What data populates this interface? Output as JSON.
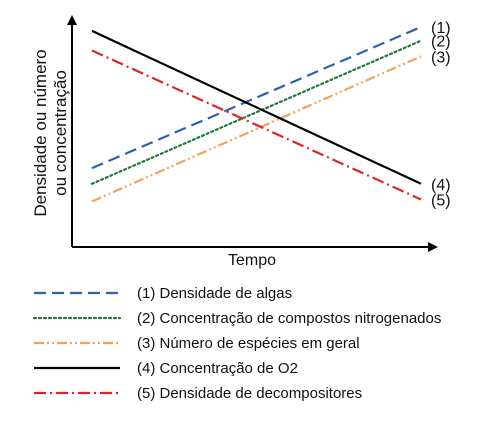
{
  "chart_data": {
    "type": "line",
    "title": "",
    "xlabel": "Tempo",
    "ylabel_lines": [
      "Densidade ou número",
      "ou concentração"
    ],
    "xticks": [],
    "yticks": [],
    "grid": false,
    "legend_position": "bottom",
    "xlim": [
      0,
      1
    ],
    "ylim": [
      0,
      1
    ],
    "series": [
      {
        "id": "s1",
        "end_label": "(1)",
        "name": "(1) Densidade de algas",
        "color": "#2f5fb3",
        "style": "dashed",
        "x": [
          0,
          1
        ],
        "y": [
          0.28,
          1.0
        ]
      },
      {
        "id": "s2",
        "end_label": "(2)",
        "name": "(2) Concentração de compostos nitrogenados",
        "color": "#1f7a3a",
        "style": "dotted",
        "x": [
          0,
          1
        ],
        "y": [
          0.2,
          0.93
        ]
      },
      {
        "id": "s3",
        "end_label": "(3)",
        "name": "(3) Número de espécies em geral",
        "color": "#f2a25c",
        "style": "dashdotdot",
        "x": [
          0,
          1
        ],
        "y": [
          0.11,
          0.85
        ]
      },
      {
        "id": "s4",
        "end_label": "(4)",
        "name": "(4) Concentração de O2",
        "color": "#000000",
        "style": "solid",
        "x": [
          0,
          1
        ],
        "y": [
          0.98,
          0.2
        ]
      },
      {
        "id": "s5",
        "end_label": "(5)",
        "name": "(5) Densidade de decompositores",
        "color": "#e02424",
        "style": "dashdot",
        "x": [
          0,
          1
        ],
        "y": [
          0.88,
          0.12
        ]
      }
    ]
  }
}
